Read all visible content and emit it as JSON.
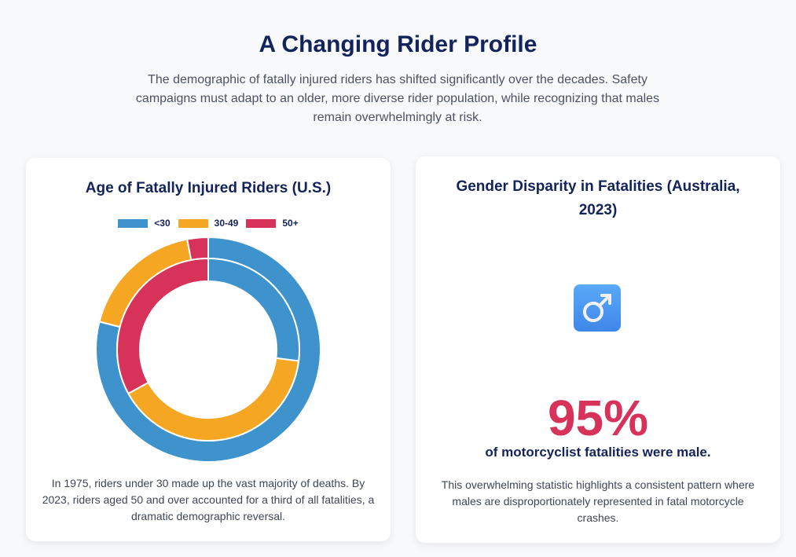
{
  "header": {
    "title": "A Changing Rider Profile",
    "intro": "The demographic of fatally injured riders has shifted significantly over the decades. Safety campaigns must adapt to an older, more diverse rider population, while recognizing that males remain overwhelmingly at risk."
  },
  "age_card": {
    "title": "Age of Fatally Injured Riders (U.S.)",
    "caption": "In 1975, riders under 30 made up the vast majority of deaths. By 2023, riders aged 50 and over accounted for a third of all fatalities, a dramatic demographic reversal."
  },
  "chart_data": {
    "type": "pie",
    "variant": "nested-doughnut",
    "categories": [
      "<30",
      "30-49",
      "50+"
    ],
    "colors": [
      "#3f93cc",
      "#f5a623",
      "#d7325a"
    ],
    "legend": "top",
    "series": [
      {
        "ring": "outer",
        "values": [
          79,
          18,
          3
        ]
      },
      {
        "ring": "inner",
        "values": [
          27,
          40,
          33
        ]
      }
    ]
  },
  "gender_card": {
    "title": "Gender Disparity in Fatalities (Australia, 2023)",
    "icon": "male-sign-icon",
    "stat": "95%",
    "stat_label": "of motorcyclist fatalities were male.",
    "caption": "This overwhelming statistic highlights a consistent pattern where males are disproportionately represented in fatal motorcycle crashes."
  }
}
